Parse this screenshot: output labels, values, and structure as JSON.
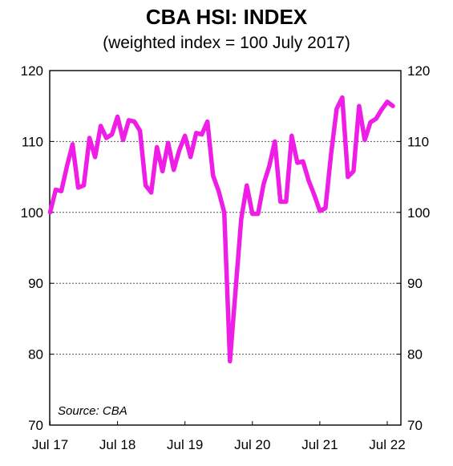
{
  "chart_data": {
    "type": "line",
    "title": "CBA HSI: INDEX",
    "subtitle": "(weighted index = 100 July 2017)",
    "source": "Source: CBA",
    "ylim": [
      70,
      120
    ],
    "y_ticks": [
      70,
      80,
      90,
      100,
      110,
      120
    ],
    "gridlines": [
      80,
      90,
      100,
      110
    ],
    "x_tick_labels": [
      "Jul 17",
      "Jul 18",
      "Jul 19",
      "Jul 20",
      "Jul 21",
      "Jul 22"
    ],
    "line_color": "#ee1ee6",
    "series": [
      {
        "values": [
          100.0,
          103.2,
          103.0,
          106.5,
          109.6,
          103.5,
          103.8,
          110.5,
          107.8,
          112.2,
          110.5,
          111.0,
          113.5,
          110.2,
          113.0,
          112.8,
          111.5,
          103.8,
          102.8,
          109.2,
          105.8,
          109.8,
          106.0,
          108.8,
          110.8,
          107.8,
          111.2,
          111.0,
          112.8,
          105.2,
          103.0,
          100.0,
          79.0,
          89.0,
          99.0,
          103.8,
          99.8,
          99.8,
          104.0,
          106.5,
          110.0,
          101.5,
          101.5,
          110.8,
          107.0,
          107.2,
          104.5,
          102.5,
          100.2,
          100.6,
          108.2,
          114.6,
          116.2,
          105.0,
          105.8,
          115.0,
          110.2,
          112.7,
          113.2,
          114.5,
          115.6,
          115.0
        ]
      }
    ]
  }
}
